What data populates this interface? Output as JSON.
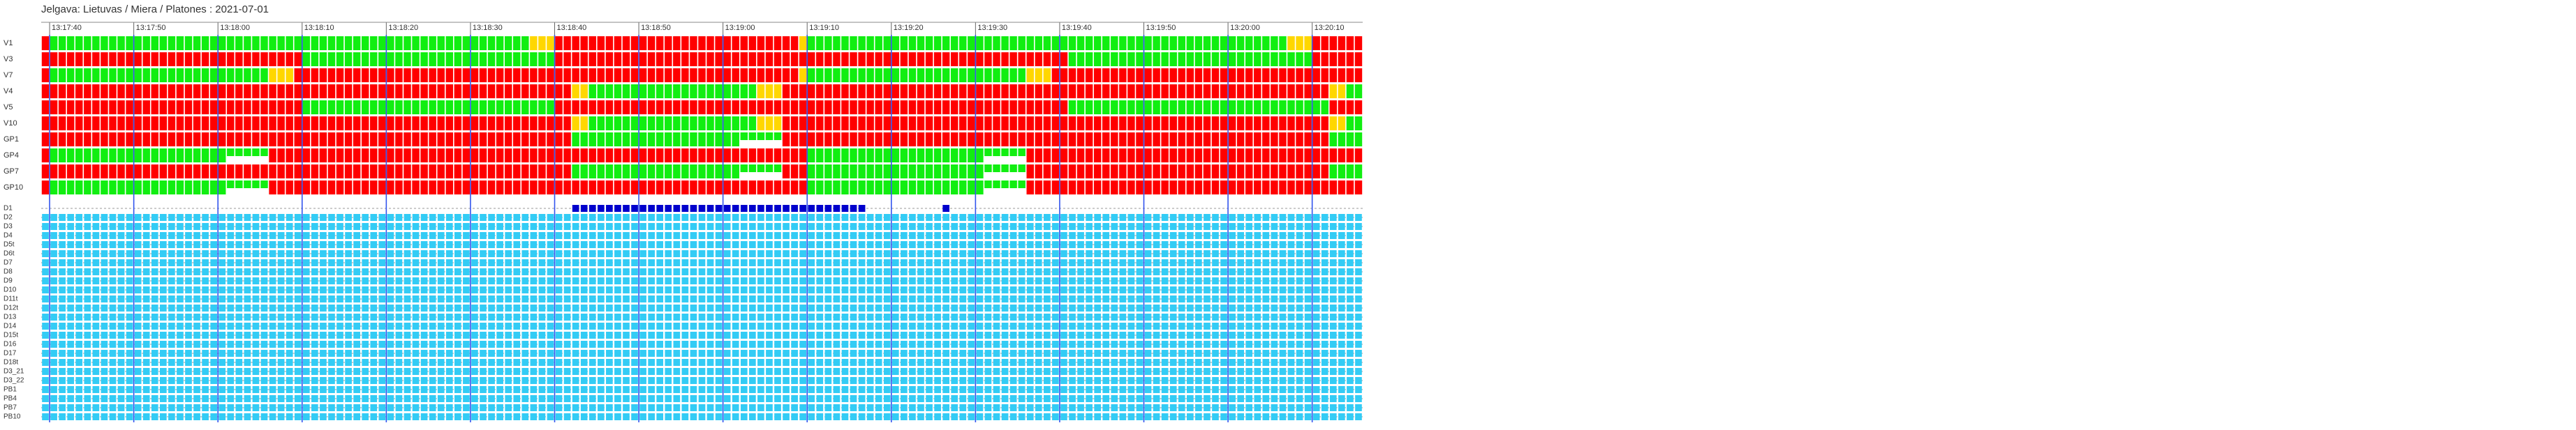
{
  "chart_data": {
    "type": "timeline",
    "title": "Jelgava: Lietuvas / Miera / Platones : 2021-07-01",
    "xlim": [
      0,
      157
    ],
    "xticks": [
      {
        "value": 1,
        "label": "13:17:40"
      },
      {
        "value": 11,
        "label": "13:17:50"
      },
      {
        "value": 21,
        "label": "13:18:00"
      },
      {
        "value": 31,
        "label": "13:18:10"
      },
      {
        "value": 41,
        "label": "13:18:20"
      },
      {
        "value": 51,
        "label": "13:18:30"
      },
      {
        "value": 61,
        "label": "13:18:40"
      },
      {
        "value": 71,
        "label": "13:18:50"
      },
      {
        "value": 81,
        "label": "13:19:00"
      },
      {
        "value": 91,
        "label": "13:19:10"
      },
      {
        "value": 101,
        "label": "13:19:20"
      },
      {
        "value": 111,
        "label": "13:19:30"
      },
      {
        "value": 121,
        "label": "13:19:40"
      },
      {
        "value": 131,
        "label": "13:19:50"
      },
      {
        "value": 141,
        "label": "13:20:00"
      },
      {
        "value": 151,
        "label": "13:20:10"
      }
    ],
    "signals": [
      {
        "name": "V1",
        "segments": [
          {
            "start": 0,
            "length": 1,
            "color": "#ff0000"
          },
          {
            "start": 1,
            "length": 57,
            "color": "#11ee11"
          },
          {
            "start": 58,
            "length": 3,
            "color": "#ffd700"
          },
          {
            "start": 61,
            "length": 29,
            "color": "#ff0000"
          },
          {
            "start": 90,
            "length": 1,
            "color": "#ffd700"
          },
          {
            "start": 91,
            "length": 57,
            "color": "#11ee11"
          },
          {
            "start": 148,
            "length": 3,
            "color": "#ffd700"
          },
          {
            "start": 151,
            "length": 6,
            "color": "#ff0000"
          }
        ]
      },
      {
        "name": "V3",
        "segments": [
          {
            "start": 0,
            "length": 31,
            "color": "#ff0000"
          },
          {
            "start": 31,
            "length": 30,
            "color": "#11ee11"
          },
          {
            "start": 61,
            "length": 61,
            "color": "#ff0000"
          },
          {
            "start": 122,
            "length": 29,
            "color": "#11ee11"
          },
          {
            "start": 151,
            "length": 6,
            "color": "#ff0000"
          }
        ]
      },
      {
        "name": "V7",
        "segments": [
          {
            "start": 0,
            "length": 1,
            "color": "#ff0000"
          },
          {
            "start": 1,
            "length": 26,
            "color": "#11ee11"
          },
          {
            "start": 27,
            "length": 3,
            "color": "#ffd700"
          },
          {
            "start": 30,
            "length": 60,
            "color": "#ff0000"
          },
          {
            "start": 90,
            "length": 1,
            "color": "#ffd700"
          },
          {
            "start": 91,
            "length": 26,
            "color": "#11ee11"
          },
          {
            "start": 117,
            "length": 3,
            "color": "#ffd700"
          },
          {
            "start": 120,
            "length": 37,
            "color": "#ff0000"
          }
        ]
      },
      {
        "name": "V4",
        "segments": [
          {
            "start": 0,
            "length": 63,
            "color": "#ff0000"
          },
          {
            "start": 63,
            "length": 2,
            "color": "#ffd700"
          },
          {
            "start": 65,
            "length": 20,
            "color": "#11ee11"
          },
          {
            "start": 85,
            "length": 3,
            "color": "#ffd700"
          },
          {
            "start": 88,
            "length": 65,
            "color": "#ff0000"
          },
          {
            "start": 153,
            "length": 2,
            "color": "#ffd700"
          },
          {
            "start": 155,
            "length": 2,
            "color": "#11ee11"
          }
        ]
      },
      {
        "name": "V5",
        "segments": [
          {
            "start": 0,
            "length": 31,
            "color": "#ff0000"
          },
          {
            "start": 31,
            "length": 30,
            "color": "#11ee11"
          },
          {
            "start": 61,
            "length": 61,
            "color": "#ff0000"
          },
          {
            "start": 122,
            "length": 31,
            "color": "#11ee11"
          },
          {
            "start": 153,
            "length": 4,
            "color": "#ff0000"
          }
        ]
      },
      {
        "name": "V10",
        "segments": [
          {
            "start": 0,
            "length": 63,
            "color": "#ff0000"
          },
          {
            "start": 63,
            "length": 2,
            "color": "#ffd700"
          },
          {
            "start": 65,
            "length": 20,
            "color": "#11ee11"
          },
          {
            "start": 85,
            "length": 3,
            "color": "#ffd700"
          },
          {
            "start": 88,
            "length": 65,
            "color": "#ff0000"
          },
          {
            "start": 153,
            "length": 2,
            "color": "#ffd700"
          },
          {
            "start": 155,
            "length": 2,
            "color": "#11ee11"
          }
        ]
      },
      {
        "name": "GP1",
        "segments": [
          {
            "start": 0,
            "length": 63,
            "color": "#ff0000"
          },
          {
            "start": 63,
            "length": 20,
            "color": "#11ee11"
          },
          {
            "start": 83,
            "length": 5,
            "color": "#11ee11",
            "half": true
          },
          {
            "start": 88,
            "length": 65,
            "color": "#ff0000"
          },
          {
            "start": 153,
            "length": 4,
            "color": "#11ee11"
          }
        ]
      },
      {
        "name": "GP4",
        "segments": [
          {
            "start": 0,
            "length": 1,
            "color": "#ff0000"
          },
          {
            "start": 1,
            "length": 21,
            "color": "#11ee11"
          },
          {
            "start": 22,
            "length": 5,
            "color": "#11ee11",
            "half": true
          },
          {
            "start": 27,
            "length": 64,
            "color": "#ff0000"
          },
          {
            "start": 91,
            "length": 21,
            "color": "#11ee11"
          },
          {
            "start": 112,
            "length": 5,
            "color": "#11ee11",
            "half": true
          },
          {
            "start": 117,
            "length": 40,
            "color": "#ff0000"
          }
        ]
      },
      {
        "name": "GP7",
        "segments": [
          {
            "start": 0,
            "length": 63,
            "color": "#ff0000"
          },
          {
            "start": 63,
            "length": 20,
            "color": "#11ee11"
          },
          {
            "start": 83,
            "length": 5,
            "color": "#11ee11",
            "half": true
          },
          {
            "start": 88,
            "length": 3,
            "color": "#ff0000"
          },
          {
            "start": 91,
            "length": 21,
            "color": "#11ee11"
          },
          {
            "start": 112,
            "length": 5,
            "color": "#11ee11",
            "half": true
          },
          {
            "start": 117,
            "length": 36,
            "color": "#ff0000"
          },
          {
            "start": 153,
            "length": 4,
            "color": "#11ee11"
          }
        ]
      },
      {
        "name": "GP10",
        "segments": [
          {
            "start": 0,
            "length": 1,
            "color": "#ff0000"
          },
          {
            "start": 1,
            "length": 21,
            "color": "#11ee11"
          },
          {
            "start": 22,
            "length": 5,
            "color": "#11ee11",
            "half": true
          },
          {
            "start": 27,
            "length": 64,
            "color": "#ff0000"
          },
          {
            "start": 91,
            "length": 21,
            "color": "#11ee11"
          },
          {
            "start": 112,
            "length": 5,
            "color": "#11ee11",
            "half": true
          },
          {
            "start": 117,
            "length": 40,
            "color": "#ff0000"
          }
        ]
      }
    ],
    "detectors": [
      {
        "name": "D1",
        "color": "#0000cc",
        "segments": [
          {
            "start": 63,
            "length": 35
          },
          {
            "start": 107,
            "length": 1
          }
        ]
      },
      {
        "name": "D2",
        "color": "#33ccf5",
        "segments": [
          {
            "start": 0,
            "length": 157
          }
        ]
      },
      {
        "name": "D3",
        "color": "#33ccf5",
        "segments": [
          {
            "start": 0,
            "length": 157
          }
        ]
      },
      {
        "name": "D4",
        "color": "#33ccf5",
        "segments": [
          {
            "start": 0,
            "length": 157
          }
        ]
      },
      {
        "name": "D5t",
        "color": "#33ccf5",
        "segments": [
          {
            "start": 0,
            "length": 157
          }
        ]
      },
      {
        "name": "D6t",
        "color": "#33ccf5",
        "segments": [
          {
            "start": 0,
            "length": 157
          }
        ]
      },
      {
        "name": "D7",
        "color": "#33ccf5",
        "segments": [
          {
            "start": 0,
            "length": 157
          }
        ]
      },
      {
        "name": "D8",
        "color": "#33ccf5",
        "segments": [
          {
            "start": 0,
            "length": 157
          }
        ]
      },
      {
        "name": "D9",
        "color": "#33ccf5",
        "segments": [
          {
            "start": 0,
            "length": 157
          }
        ]
      },
      {
        "name": "D10",
        "color": "#33ccf5",
        "segments": [
          {
            "start": 0,
            "length": 157
          }
        ]
      },
      {
        "name": "D11t",
        "color": "#33ccf5",
        "segments": [
          {
            "start": 0,
            "length": 157
          }
        ]
      },
      {
        "name": "D12t",
        "color": "#33ccf5",
        "segments": [
          {
            "start": 0,
            "length": 157
          }
        ]
      },
      {
        "name": "D13",
        "color": "#33ccf5",
        "segments": [
          {
            "start": 0,
            "length": 157
          }
        ]
      },
      {
        "name": "D14",
        "color": "#33ccf5",
        "segments": [
          {
            "start": 0,
            "length": 157
          }
        ]
      },
      {
        "name": "D15t",
        "color": "#33ccf5",
        "segments": [
          {
            "start": 0,
            "length": 157
          }
        ]
      },
      {
        "name": "D16",
        "color": "#33ccf5",
        "segments": [
          {
            "start": 0,
            "length": 157
          }
        ]
      },
      {
        "name": "D17",
        "color": "#33ccf5",
        "segments": [
          {
            "start": 0,
            "length": 157
          }
        ]
      },
      {
        "name": "D18t",
        "color": "#33ccf5",
        "segments": [
          {
            "start": 0,
            "length": 157
          }
        ]
      },
      {
        "name": "D3_21",
        "color": "#33ccf5",
        "segments": [
          {
            "start": 0,
            "length": 157
          }
        ]
      },
      {
        "name": "D3_22",
        "color": "#33ccf5",
        "segments": [
          {
            "start": 0,
            "length": 157
          }
        ]
      },
      {
        "name": "PB1",
        "color": "#33ccf5",
        "segments": [
          {
            "start": 0,
            "length": 157
          }
        ]
      },
      {
        "name": "PB4",
        "color": "#33ccf5",
        "segments": [
          {
            "start": 0,
            "length": 157
          }
        ]
      },
      {
        "name": "PB7",
        "color": "#33ccf5",
        "segments": [
          {
            "start": 0,
            "length": 157
          }
        ]
      },
      {
        "name": "PB10",
        "color": "#33ccf5",
        "segments": [
          {
            "start": 0,
            "length": 157
          }
        ]
      }
    ],
    "grid": true,
    "grid_color": "#3355ee"
  }
}
